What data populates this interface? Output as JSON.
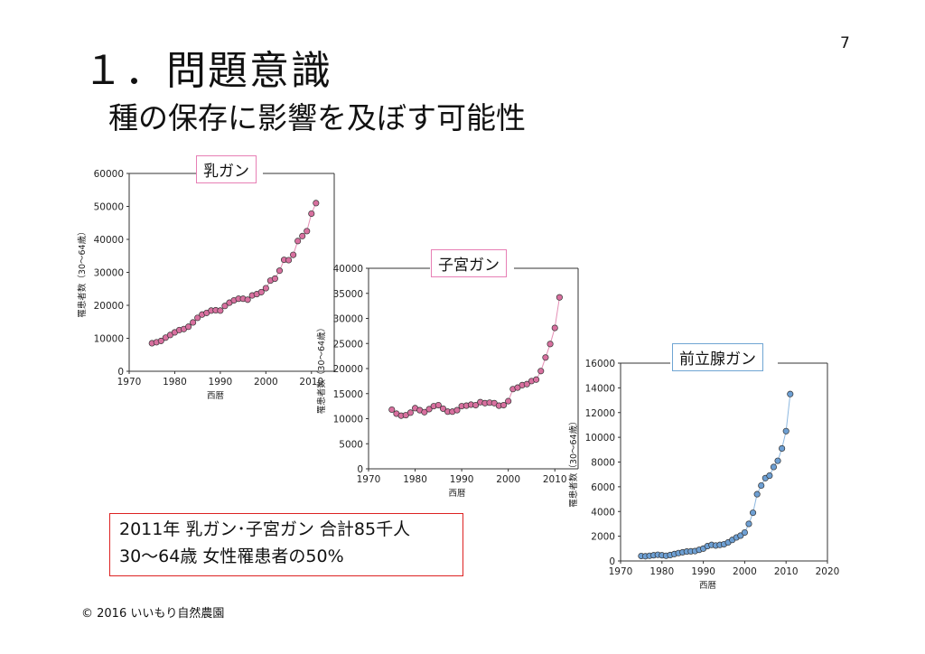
{
  "page_number": "7",
  "title": "１．問題意識",
  "subtitle": "種の保存に影響を及ぼす可能性",
  "summary": {
    "line1": "2011年 乳ガン･子宮ガン 合計85千人",
    "line2": "30～64歳 女性罹患者の50%"
  },
  "copyright": "© 2016 いいもり自然農園",
  "chart_data": [
    {
      "type": "line",
      "title": "乳ガン",
      "xlabel": "西暦",
      "ylabel": "罹患者数（30～64歳）",
      "xlim": [
        1970,
        2015
      ],
      "ylim": [
        0,
        60000
      ],
      "xticks": [
        "1970",
        "1980",
        "1990",
        "2000",
        "2010"
      ],
      "yticks": [
        "0",
        "10000",
        "20000",
        "30000",
        "40000",
        "50000",
        "60000"
      ],
      "grid": false,
      "title_border_color": "#e77fb5",
      "marker_color": "#d8709f",
      "line_color": "#e48fb5",
      "series": [
        {
          "x": [
            1975,
            1976,
            1977,
            1978,
            1979,
            1980,
            1981,
            1982,
            1983,
            1984,
            1985,
            1986,
            1987,
            1988,
            1989,
            1990,
            1991,
            1992,
            1993,
            1994,
            1995,
            1996,
            1997,
            1998,
            1999,
            2000,
            2001,
            2002,
            2003,
            2004,
            2005,
            2006,
            2007,
            2008,
            2009,
            2010,
            2011
          ],
          "y": [
            8500,
            8800,
            9200,
            10200,
            11000,
            11800,
            12500,
            12800,
            13500,
            14800,
            16200,
            17200,
            17700,
            18400,
            18500,
            18400,
            19800,
            20800,
            21500,
            22000,
            22000,
            21700,
            23000,
            23400,
            24000,
            25200,
            27500,
            28100,
            30500,
            33800,
            33700,
            35300,
            39500,
            41000,
            42500,
            47800,
            51000
          ]
        }
      ]
    },
    {
      "type": "line",
      "title": "子宮ガン",
      "xlabel": "西暦",
      "ylabel": "罹患者数（30～64歳）",
      "xlim": [
        1970,
        2015
      ],
      "ylim": [
        0,
        40000
      ],
      "xticks": [
        "1970",
        "1980",
        "1990",
        "2000",
        "2010"
      ],
      "yticks": [
        "0",
        "5000",
        "10000",
        "15000",
        "20000",
        "25000",
        "30000",
        "35000",
        "40000"
      ],
      "grid": false,
      "title_border_color": "#e77fb5",
      "marker_color": "#d8709f",
      "line_color": "#e48fb5",
      "series": [
        {
          "x": [
            1975,
            1976,
            1977,
            1978,
            1979,
            1980,
            1981,
            1982,
            1983,
            1984,
            1985,
            1986,
            1987,
            1988,
            1989,
            1990,
            1991,
            1992,
            1993,
            1994,
            1995,
            1996,
            1997,
            1998,
            1999,
            2000,
            2001,
            2002,
            2003,
            2004,
            2005,
            2006,
            2007,
            2008,
            2009,
            2010,
            2011
          ],
          "y": [
            11800,
            11000,
            10600,
            10700,
            11200,
            12100,
            11700,
            11300,
            11900,
            12500,
            12700,
            12000,
            11400,
            11400,
            11700,
            12500,
            12600,
            12800,
            12700,
            13300,
            13100,
            13200,
            13100,
            12600,
            12700,
            13500,
            15900,
            16200,
            16700,
            16900,
            17500,
            17800,
            19500,
            22200,
            24900,
            28100,
            34200
          ]
        }
      ]
    },
    {
      "type": "line",
      "title": "前立腺ガン",
      "xlabel": "西暦",
      "ylabel": "罹患者数（30～64歳）",
      "xlim": [
        1970,
        2020
      ],
      "ylim": [
        0,
        16000
      ],
      "xticks": [
        "1970",
        "1980",
        "1990",
        "2000",
        "2010",
        "2020"
      ],
      "yticks": [
        "0",
        "2000",
        "4000",
        "6000",
        "8000",
        "10000",
        "12000",
        "14000",
        "16000"
      ],
      "grid": false,
      "title_border_color": "#6fa5d3",
      "marker_color": "#6d9fd3",
      "line_color": "#8db8e0",
      "series": [
        {
          "x": [
            1975,
            1976,
            1977,
            1978,
            1979,
            1980,
            1981,
            1982,
            1983,
            1984,
            1985,
            1986,
            1987,
            1988,
            1989,
            1990,
            1991,
            1992,
            1993,
            1994,
            1995,
            1996,
            1997,
            1998,
            1999,
            2000,
            2001,
            2002,
            2003,
            2004,
            2005,
            2006,
            2007,
            2008,
            2009,
            2010,
            2011
          ],
          "y": [
            400,
            380,
            420,
            460,
            500,
            460,
            420,
            480,
            560,
            640,
            700,
            760,
            780,
            800,
            900,
            1000,
            1200,
            1300,
            1250,
            1300,
            1350,
            1500,
            1700,
            1900,
            2050,
            2300,
            3000,
            3900,
            5400,
            6100,
            6700,
            6900,
            7600,
            8100,
            9100,
            10500,
            13500
          ]
        }
      ]
    }
  ]
}
